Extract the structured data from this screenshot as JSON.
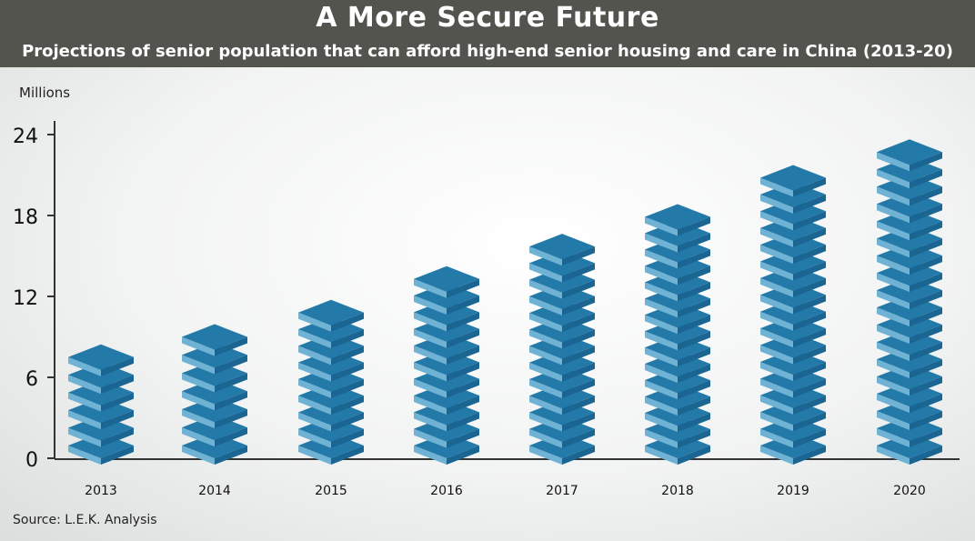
{
  "header": {
    "title": "A More Secure Future",
    "subtitle": "Projections of senior population that can afford high-end senior housing and care in China (2013-20)"
  },
  "footer": {
    "source": "Source: L.E.K. Analysis"
  },
  "colors": {
    "banner": "#54544f",
    "block_top": "#2379a8",
    "block_front": "#6fb2d3",
    "block_side": "#1a6591",
    "axis": "#333333"
  },
  "chart_data": {
    "type": "bar",
    "title": "A More Secure Future",
    "subtitle": "Projections of senior population that can afford high-end senior housing and care in China (2013-20)",
    "ylabel": "Millions",
    "xlabel": "",
    "ylim": [
      0,
      24
    ],
    "yticks": [
      0,
      6,
      12,
      18,
      24
    ],
    "categories": [
      "2013",
      "2014",
      "2015",
      "2016",
      "2017",
      "2018",
      "2019",
      "2020"
    ],
    "values": [
      7.5,
      9.0,
      10.8,
      13.3,
      15.7,
      17.9,
      20.8,
      22.7
    ],
    "grid": false,
    "legend": "none"
  }
}
